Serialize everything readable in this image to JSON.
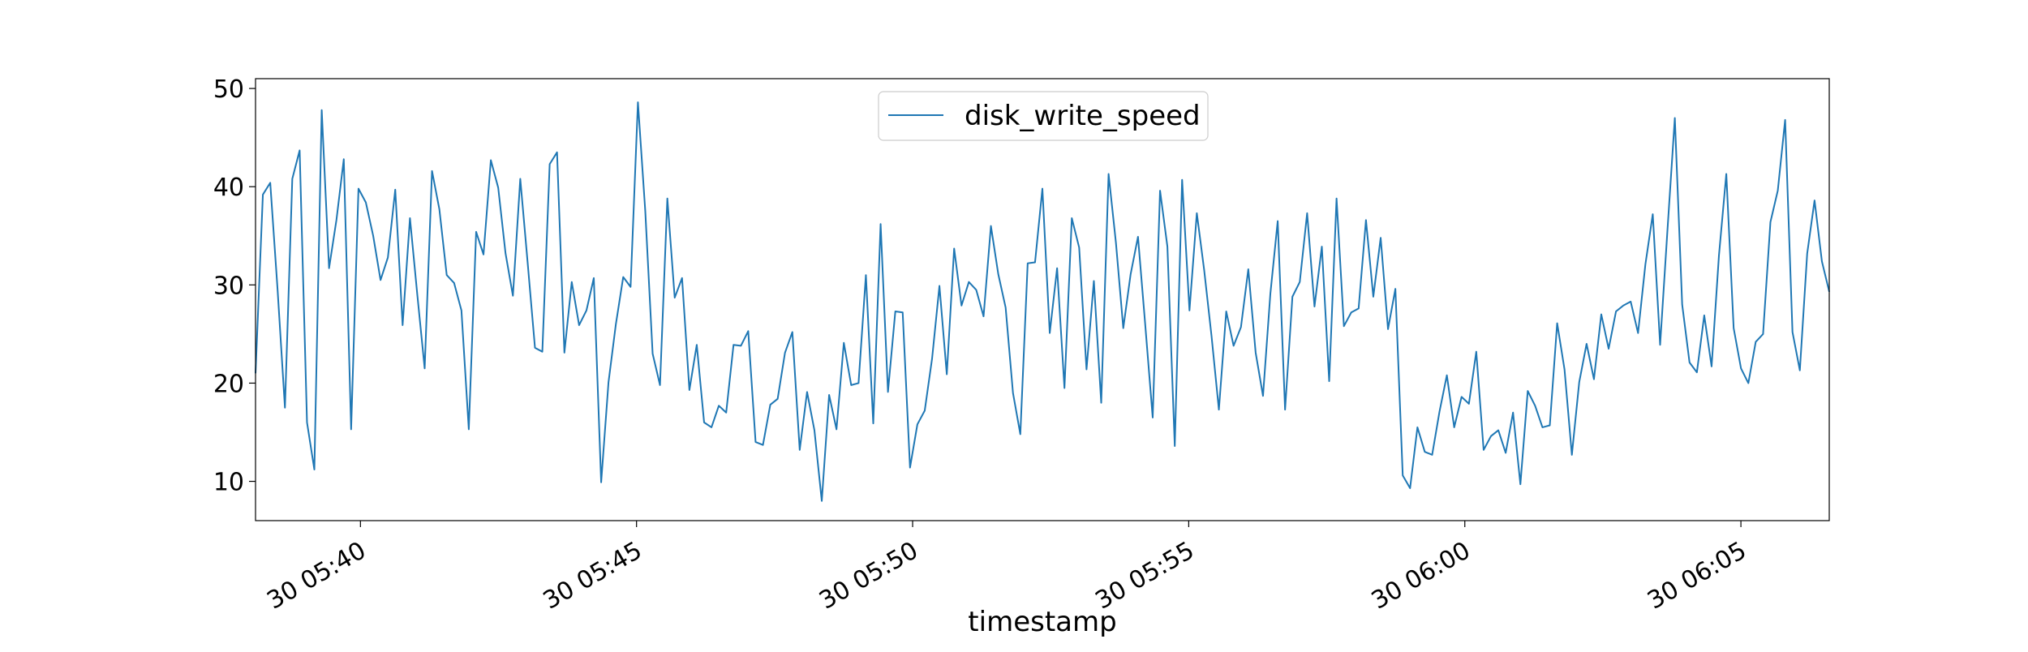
{
  "chart_data": {
    "type": "line",
    "xlabel": "timestamp",
    "ylabel": "",
    "title": "",
    "x_start": "2023-06-30 05:38:06",
    "x_end": "2023-06-30 06:06:36",
    "xlim": [
      "2023-06-30 05:38:06",
      "2023-06-30 06:06:36"
    ],
    "ylim": [
      6,
      51
    ],
    "y_ticks": [
      10,
      20,
      30,
      40,
      50
    ],
    "x_ticks": [
      {
        "label": "30 05:40",
        "time": "2023-06-30 05:40:00"
      },
      {
        "label": "30 05:45",
        "time": "2023-06-30 05:45:00"
      },
      {
        "label": "30 05:50",
        "time": "2023-06-30 05:50:00"
      },
      {
        "label": "30 05:55",
        "time": "2023-06-30 05:55:00"
      },
      {
        "label": "30 06:00",
        "time": "2023-06-30 06:00:00"
      },
      {
        "label": "30 06:05",
        "time": "2023-06-30 06:05:00"
      }
    ],
    "grid": false,
    "legend_position": "top-center",
    "series": [
      {
        "name": "disk_write_speed",
        "color": "#1f77b4",
        "values": [
          21,
          39.2,
          40.4,
          29.5,
          17.5,
          40.8,
          43.7,
          16,
          11.2,
          47.8,
          31.7,
          36.6,
          42.8,
          15.3,
          39.8,
          38.4,
          35,
          30.5,
          32.8,
          39.7,
          25.9,
          36.8,
          29,
          21.5,
          41.6,
          37.7,
          31,
          30.2,
          27.4,
          15.3,
          35.4,
          33.1,
          42.7,
          39.9,
          33.2,
          28.9,
          40.8,
          32.3,
          23.6,
          23.2,
          42.3,
          43.5,
          23.1,
          30.3,
          25.9,
          27.4,
          30.7,
          9.9,
          20.1,
          26,
          30.8,
          29.8,
          48.6,
          37.5,
          23,
          19.8,
          38.8,
          28.7,
          30.7,
          19.3,
          23.9,
          16,
          15.5,
          17.7,
          17,
          23.9,
          23.8,
          25.3,
          14,
          13.7,
          17.8,
          18.4,
          23.1,
          25.2,
          13.2,
          19.1,
          15.2,
          8,
          18.8,
          15.3,
          24.1,
          19.8,
          20,
          31,
          15.9,
          36.2,
          19.1,
          27.3,
          27.2,
          11.4,
          15.8,
          17.2,
          22.5,
          29.9,
          20.9,
          33.7,
          27.9,
          30.3,
          29.5,
          26.8,
          36,
          31.1,
          27.7,
          19,
          14.8,
          32.2,
          32.3,
          39.8,
          25.1,
          31.7,
          19.5,
          36.8,
          33.8,
          21.4,
          30.4,
          18,
          41.3,
          34.3,
          25.6,
          31.1,
          34.9,
          25.8,
          16.5,
          39.6,
          33.9,
          13.6,
          40.7,
          27.4,
          37.3,
          31.5,
          24.8,
          17.3,
          27.3,
          23.8,
          25.7,
          31.6,
          23.1,
          18.7,
          29.1,
          36.5,
          17.3,
          28.8,
          30.3,
          37.3,
          27.8,
          33.9,
          20.2,
          38.8,
          25.8,
          27.2,
          27.6,
          36.6,
          28.8,
          34.8,
          25.5,
          29.6,
          10.6,
          9.3,
          15.5,
          13,
          12.7,
          17.1,
          20.8,
          15.5,
          18.6,
          17.9,
          23.2,
          13.2,
          14.6,
          15.2,
          12.9,
          17,
          9.7,
          19.2,
          17.7,
          15.5,
          15.7,
          26.1,
          21.4,
          12.7,
          20.1,
          24,
          20.4,
          27,
          23.5,
          27.3,
          27.9,
          28.3,
          25.1,
          32.1,
          37.2,
          23.9,
          35.6,
          47,
          28,
          22.1,
          21.1,
          26.9,
          21.7,
          33,
          41.3,
          25.6,
          21.5,
          20,
          24.2,
          25,
          36.4,
          39.6,
          46.8,
          25.2,
          21.3,
          33.2,
          38.6,
          32.4,
          29.3
        ]
      }
    ]
  }
}
